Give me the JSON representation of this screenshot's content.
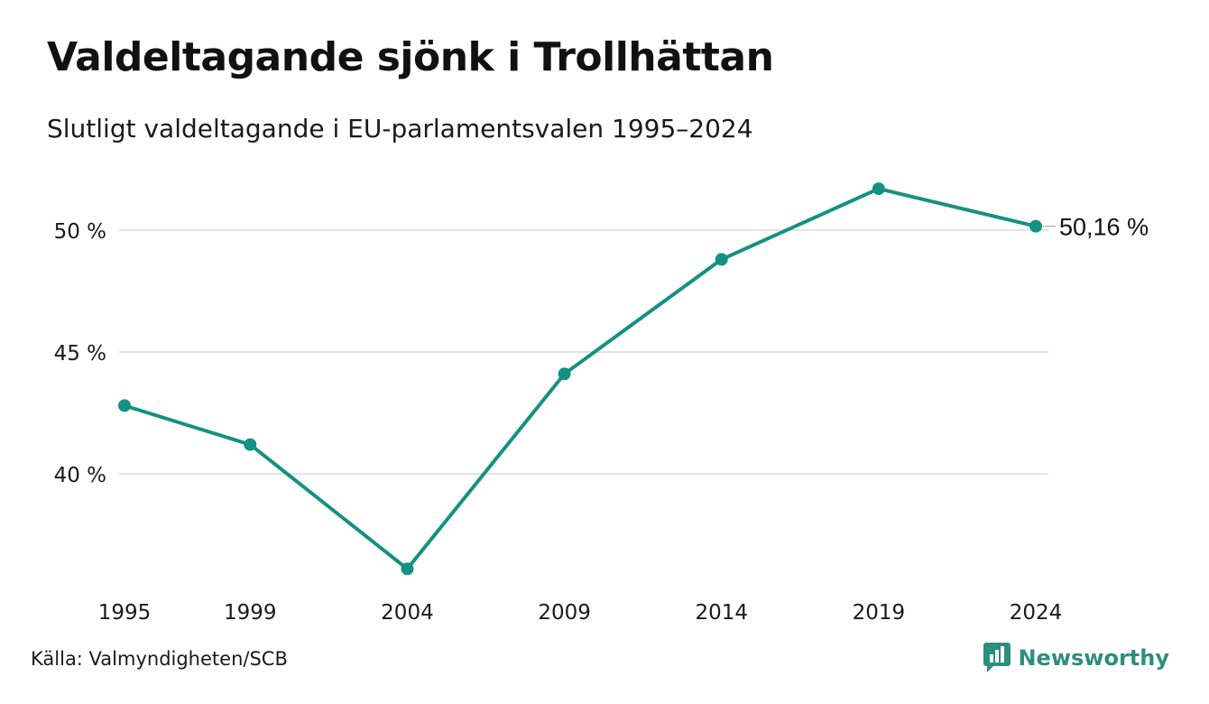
{
  "header": {
    "title": "Valdeltagande sjönk i Trollhättan",
    "subtitle": "Slutligt valdeltagande i EU-parlamentsvalen 1995–2024"
  },
  "footer": {
    "source": "Källa: Valmyndigheten/SCB",
    "brand_name": "Newsworthy",
    "brand_icon": "newsworthy-logo-icon"
  },
  "colors": {
    "line": "#149183",
    "grid": "#e3e3e3",
    "brand": "#2e8e7e"
  },
  "chart_data": {
    "type": "line",
    "x": [
      1995,
      1999,
      2004,
      2009,
      2014,
      2019,
      2024
    ],
    "x_tick_labels": [
      "1995",
      "1999",
      "2004",
      "2009",
      "2014",
      "2019",
      "2024"
    ],
    "series": [
      {
        "values": [
          42.8,
          41.2,
          36.1,
          44.1,
          48.8,
          51.7,
          50.16
        ]
      }
    ],
    "y_ticks": [
      40,
      45,
      50
    ],
    "y_tick_labels": [
      "40 %",
      "45 %",
      "50 %"
    ],
    "ylim": [
      34.5,
      53.4
    ],
    "end_label": "50,16 %",
    "grid": "horizontal",
    "legend": "none"
  }
}
